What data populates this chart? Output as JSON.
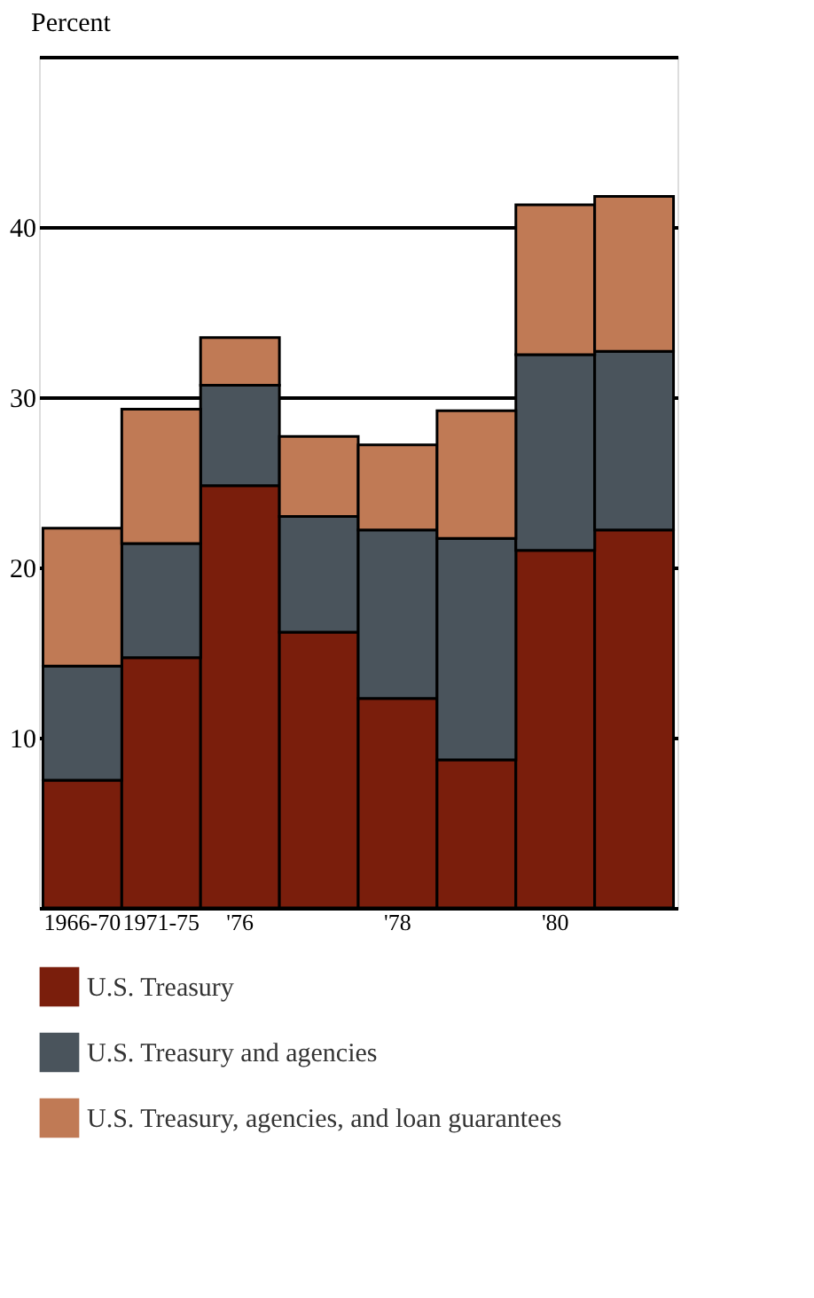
{
  "chart_data": {
    "type": "bar",
    "stacked": true,
    "ylabel": "Percent",
    "categories": [
      "1966-70",
      "1971-75",
      "'76",
      null,
      "'78",
      null,
      "'80",
      null
    ],
    "series": [
      {
        "name": "U.S. Treasury",
        "color": "#7a1e0c",
        "values": [
          7.5,
          14.7,
          24.8,
          16.2,
          12.3,
          8.7,
          21.0,
          22.2
        ]
      },
      {
        "name": "U.S. Treasury and agencies",
        "color": "#4a545c",
        "values": [
          6.7,
          6.7,
          5.9,
          6.8,
          9.9,
          13.0,
          11.5,
          10.5
        ]
      },
      {
        "name": "U.S. Treasury, agencies, and loan guarantees",
        "color": "#c07a55",
        "values": [
          8.1,
          7.9,
          2.8,
          4.7,
          5.0,
          7.5,
          8.8,
          9.1
        ]
      }
    ],
    "ylim": [
      0,
      50
    ],
    "yticks": [
      {
        "value": 0,
        "label": null
      },
      10,
      20,
      30,
      40,
      {
        "value": 50,
        "label": null
      }
    ],
    "grid": "y",
    "legend": "bottom"
  }
}
